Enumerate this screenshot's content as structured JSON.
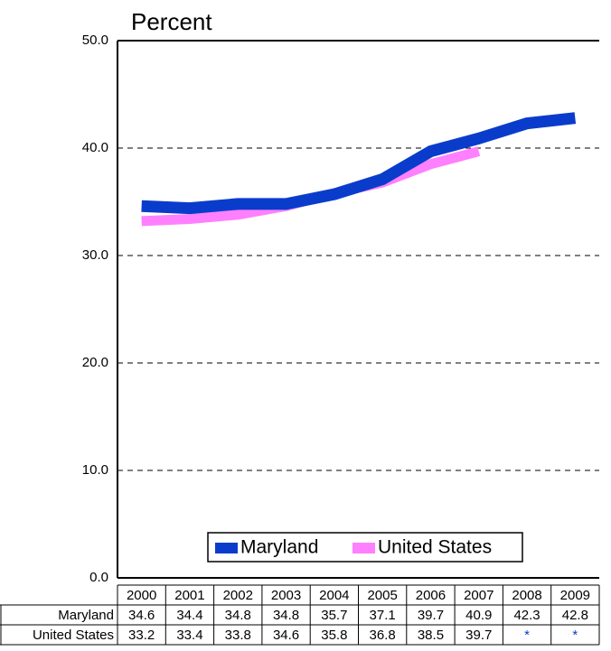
{
  "chart_data": {
    "type": "line",
    "title": "Percent",
    "categories": [
      "2000",
      "2001",
      "2002",
      "2003",
      "2004",
      "2005",
      "2006",
      "2007",
      "2008",
      "2009"
    ],
    "series": [
      {
        "name": "Maryland",
        "color": "#0a3ccc",
        "values": [
          34.6,
          34.4,
          34.8,
          34.8,
          35.7,
          37.1,
          39.7,
          40.9,
          42.3,
          42.8
        ]
      },
      {
        "name": "United States",
        "color": "#ff80ff",
        "values": [
          33.2,
          33.4,
          33.8,
          34.6,
          35.8,
          36.8,
          38.5,
          39.7,
          null,
          null
        ],
        "value_labels": [
          "33.2",
          "33.4",
          "33.8",
          "34.6",
          "35.8",
          "36.8",
          "38.5",
          "39.7",
          "*",
          "*"
        ]
      }
    ],
    "ylim": [
      0,
      50
    ],
    "yticks": [
      {
        "value": 0,
        "label": "0.0"
      },
      {
        "value": 10,
        "label": "10.0"
      },
      {
        "value": 20,
        "label": "20.0"
      },
      {
        "value": 30,
        "label": "30.0"
      },
      {
        "value": 40,
        "label": "40.0"
      },
      {
        "value": 50,
        "label": "50.0"
      }
    ],
    "grid": true,
    "legend": "lower center"
  }
}
